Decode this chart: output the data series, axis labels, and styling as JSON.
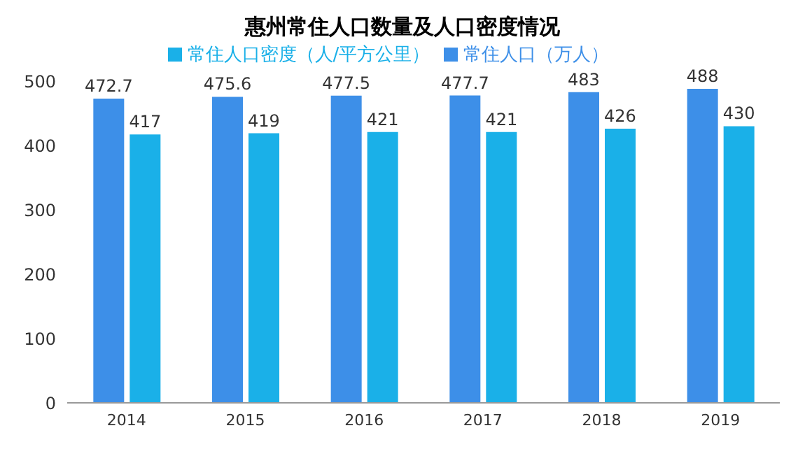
{
  "chart_data": {
    "type": "bar",
    "title": "惠州常住人口数量及人口密度情况",
    "categories": [
      "2014",
      "2015",
      "2016",
      "2017",
      "2018",
      "2019"
    ],
    "series": [
      {
        "name": "常住人口（万人）",
        "color": "#3d8fe8",
        "values": [
          472.7,
          475.6,
          477.5,
          477.7,
          483,
          488
        ]
      },
      {
        "name": "常住人口密度（人/平方公里）",
        "color": "#1ab0e8",
        "values": [
          417,
          419,
          421,
          421,
          426,
          430
        ]
      }
    ],
    "ylim": [
      0,
      500
    ],
    "yticks": [
      0,
      100,
      200,
      300,
      400,
      500
    ],
    "grid": false,
    "legend": "top",
    "data_labels": true
  }
}
